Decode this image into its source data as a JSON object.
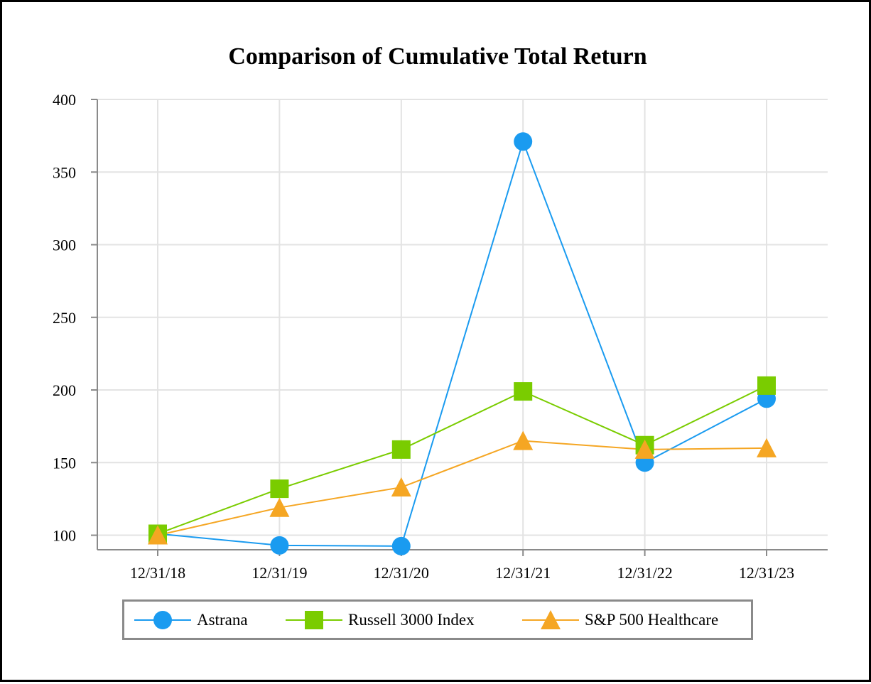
{
  "chart_data": {
    "type": "line",
    "title": "Comparison of Cumulative Total Return",
    "xlabel": "",
    "ylabel": "",
    "categories": [
      "12/31/18",
      "12/31/19",
      "12/31/20",
      "12/31/21",
      "12/31/22",
      "12/31/23"
    ],
    "ylim": [
      90,
      400
    ],
    "yticks": [
      100,
      150,
      200,
      250,
      300,
      350,
      400
    ],
    "grid": true,
    "legend_position": "bottom",
    "series": [
      {
        "name": "Astrana",
        "color": "#1a9bf0",
        "marker": "circle",
        "values": [
          101,
          93,
          92.5,
          371,
          150,
          194
        ]
      },
      {
        "name": "Russell 3000 Index",
        "color": "#7acc00",
        "marker": "square",
        "values": [
          101,
          132,
          159,
          199,
          162,
          203
        ]
      },
      {
        "name": "S&P 500 Healthcare",
        "color": "#f5a623",
        "marker": "triangle",
        "values": [
          100,
          119,
          133,
          165,
          159,
          160
        ]
      }
    ]
  }
}
